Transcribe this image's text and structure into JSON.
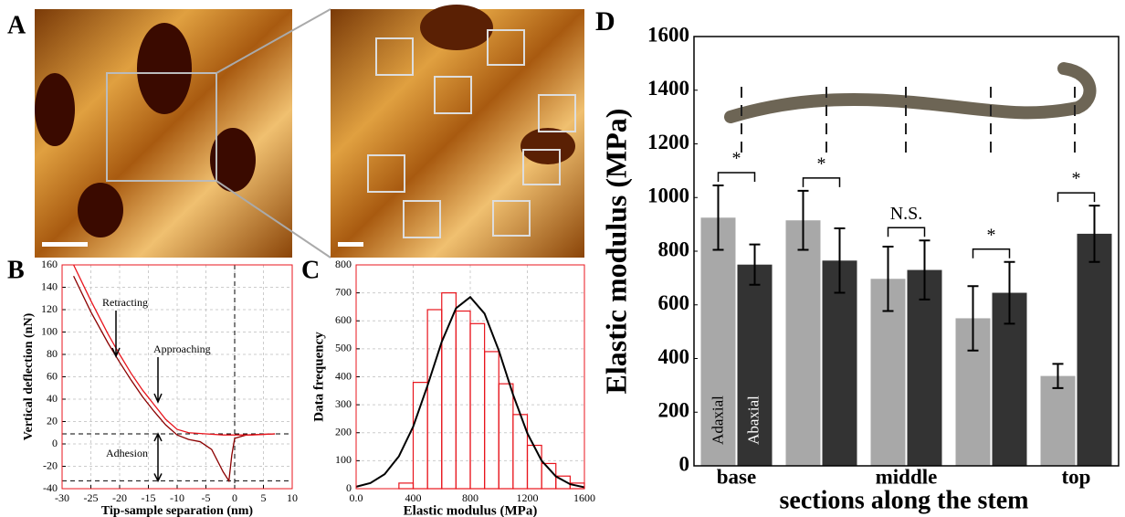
{
  "panel_a": {
    "label": "A"
  },
  "chart_data": [
    {
      "type": "line",
      "label": "B",
      "ylabel": "Vertical deflection (nN)",
      "xlabel": "Tip-sample separation (nm)",
      "xlim": [
        -30,
        10
      ],
      "xticks": [
        -30,
        -25,
        -20,
        -15,
        -10,
        -5,
        0,
        5,
        10
      ],
      "ylim": [
        -40,
        160
      ],
      "yticks": [
        -40,
        -20,
        0,
        20,
        40,
        60,
        80,
        100,
        120,
        140,
        160
      ],
      "grid": true,
      "series": [
        {
          "name": "Retracting",
          "color": "#8b0000",
          "x": [
            -28,
            -25,
            -22,
            -20,
            -18,
            -16,
            -14,
            -12,
            -10,
            -8,
            -6,
            -4,
            -2,
            -1,
            -0.5,
            0,
            2,
            7
          ],
          "values": [
            150,
            118,
            90,
            73,
            57,
            42,
            29,
            17,
            8,
            4,
            2,
            -5,
            -25,
            -33,
            -10,
            5,
            8,
            9
          ]
        },
        {
          "name": "Approaching",
          "color": "#e8141c",
          "x": [
            -28,
            -25,
            -22,
            -20,
            -18,
            -16,
            -14,
            -12,
            -10,
            -8,
            -5,
            -2,
            0,
            3,
            7
          ],
          "values": [
            160,
            128,
            98,
            80,
            63,
            48,
            35,
            22,
            13,
            10,
            9,
            8,
            8,
            8,
            9
          ]
        }
      ],
      "annotations": [
        "Adhesion"
      ],
      "hlines": [
        9,
        -33
      ],
      "vlines": [
        0
      ]
    },
    {
      "type": "histogram",
      "label": "C",
      "ylabel": "Data frequency",
      "xlabel": "Elastic modulus (MPa)",
      "bins": [
        300,
        400,
        500,
        600,
        700,
        800,
        900,
        1000,
        1100,
        1200,
        1300,
        1400,
        1500,
        1600
      ],
      "values": [
        20,
        380,
        640,
        700,
        635,
        590,
        490,
        375,
        265,
        155,
        90,
        45,
        20
      ],
      "color": "#e8141c",
      "curve": {
        "color": "#000000",
        "x": [
          0,
          100,
          200,
          300,
          400,
          500,
          600,
          700,
          800,
          900,
          1000,
          1100,
          1200,
          1300,
          1400,
          1500,
          1600
        ],
        "values": [
          7,
          20,
          52,
          116,
          222,
          368,
          525,
          645,
          685,
          626,
          494,
          336,
          198,
          100,
          44,
          16,
          5
        ]
      },
      "xlim": [
        0,
        1600
      ],
      "xticks": [
        {
          "value": 0,
          "label": "0.0"
        },
        400,
        800,
        1200,
        1600
      ],
      "ylim": [
        0,
        800
      ],
      "yticks": [
        0,
        100,
        200,
        300,
        400,
        500,
        600,
        700,
        800
      ],
      "grid": true
    },
    {
      "type": "bar",
      "label": "D",
      "ylabel": "Elastic modulus (MPa)",
      "xlabel": "sections along the stem",
      "categories": [
        "base",
        null,
        "middle",
        null,
        "top"
      ],
      "series": [
        {
          "name": "Adaxial",
          "color": "#a8a8a8",
          "values": [
            925,
            915,
            697,
            550,
            335
          ],
          "errors": [
            120,
            110,
            120,
            120,
            45
          ]
        },
        {
          "name": "Abaxial",
          "color": "#333333",
          "values": [
            750,
            765,
            730,
            645,
            865
          ],
          "errors": [
            75,
            120,
            110,
            115,
            105
          ]
        }
      ],
      "annotations": [
        "*",
        "*",
        "N.S.",
        "*",
        "*"
      ],
      "ylim": [
        0,
        1600
      ],
      "yticks": [
        0,
        200,
        400,
        600,
        800,
        1000,
        1200,
        1400,
        1600
      ]
    }
  ]
}
